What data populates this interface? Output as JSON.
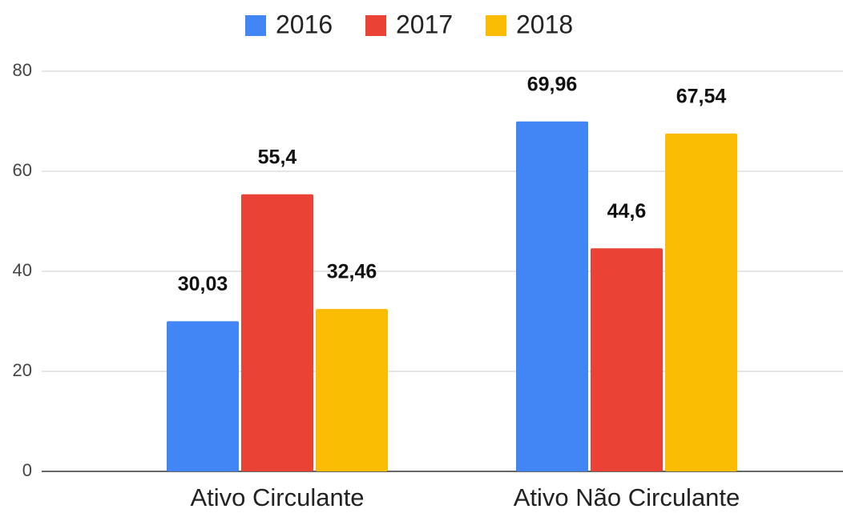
{
  "chart_data": {
    "type": "bar",
    "categories": [
      "Ativo Circulante",
      "Ativo Não Circulante"
    ],
    "series": [
      {
        "name": "2016",
        "color": "#4285f4",
        "values": [
          30.03,
          69.96
        ],
        "value_labels": [
          "30,03",
          "69,96"
        ]
      },
      {
        "name": "2017",
        "color": "#ea4335",
        "values": [
          55.4,
          44.6
        ],
        "value_labels": [
          "55,4",
          "44,6"
        ]
      },
      {
        "name": "2018",
        "color": "#fbbc04",
        "values": [
          32.46,
          67.54
        ],
        "value_labels": [
          "32,46",
          "67,54"
        ]
      }
    ],
    "ylim": [
      0,
      80
    ],
    "yticks": [
      0,
      20,
      40,
      60,
      80
    ],
    "grid": true,
    "legend": "top"
  }
}
